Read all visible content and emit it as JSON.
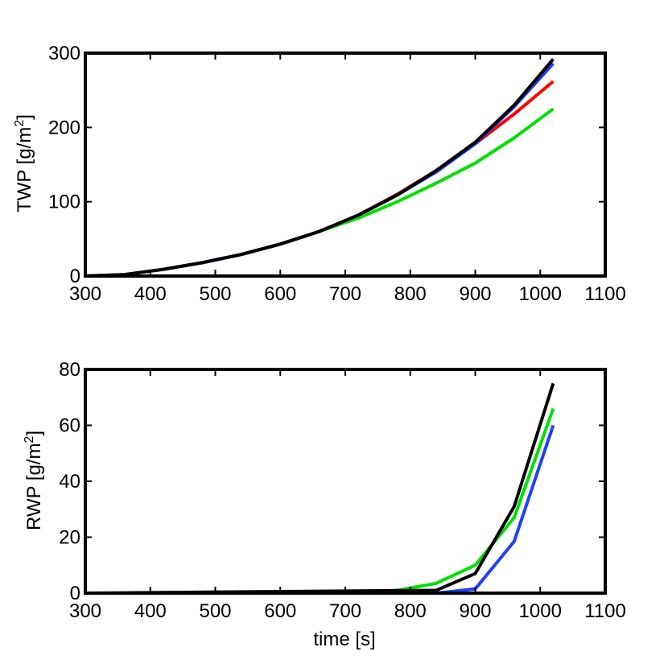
{
  "chart_data": [
    {
      "type": "line",
      "ylabel": {
        "prefix": "TWP [g/m",
        "sup": "2",
        "suffix": "]"
      },
      "xlabel": "",
      "xlim": [
        300,
        1100
      ],
      "ylim": [
        0,
        300
      ],
      "xticks": [
        "300",
        "400",
        "500",
        "600",
        "700",
        "800",
        "900",
        "1000",
        "1100"
      ],
      "yticks": [
        "0",
        "100",
        "200",
        "300"
      ],
      "series": [
        {
          "color": "#00e000",
          "x": [
            300,
            360,
            420,
            480,
            540,
            600,
            660,
            720,
            780,
            840,
            900,
            960,
            1020
          ],
          "y": [
            0,
            2,
            9,
            18,
            29,
            43,
            60,
            78,
            100,
            125,
            152,
            186,
            225
          ]
        },
        {
          "color": "#ff0000",
          "x": [
            300,
            360,
            420,
            480,
            540,
            600,
            660,
            720,
            780,
            840,
            900,
            960,
            1020
          ],
          "y": [
            0,
            2,
            9,
            18,
            29,
            43,
            60,
            82,
            110,
            142,
            178,
            218,
            262
          ]
        },
        {
          "color": "#2040ff",
          "x": [
            300,
            360,
            420,
            480,
            540,
            600,
            660,
            720,
            780,
            840,
            900,
            960,
            1020
          ],
          "y": [
            0,
            2,
            9,
            18,
            29,
            43,
            60,
            82,
            109,
            140,
            178,
            228,
            286
          ]
        },
        {
          "color": "#000000",
          "x": [
            300,
            360,
            420,
            480,
            540,
            600,
            660,
            720,
            780,
            840,
            900,
            960,
            1020
          ],
          "y": [
            0,
            2,
            9,
            18,
            29,
            43,
            60,
            82,
            109,
            142,
            180,
            230,
            292
          ]
        }
      ]
    },
    {
      "type": "line",
      "ylabel": {
        "prefix": "RWP [g/m",
        "sup": "2",
        "suffix": "]"
      },
      "xlabel": "time [s]",
      "xlim": [
        300,
        1100
      ],
      "ylim": [
        0,
        80
      ],
      "xticks": [
        "300",
        "400",
        "500",
        "600",
        "700",
        "800",
        "900",
        "1000",
        "1100"
      ],
      "yticks": [
        "0",
        "20",
        "40",
        "60",
        "80"
      ],
      "series": [
        {
          "color": "#00e000",
          "x": [
            300,
            700,
            780,
            840,
            900,
            960,
            1020
          ],
          "y": [
            0,
            0,
            1,
            3.5,
            10,
            27,
            66
          ]
        },
        {
          "color": "#2040ff",
          "x": [
            300,
            840,
            900,
            960,
            1020
          ],
          "y": [
            0,
            0,
            1.5,
            18.5,
            60
          ]
        },
        {
          "color": "#000000",
          "x": [
            300,
            840,
            900,
            960,
            1020
          ],
          "y": [
            0,
            1,
            7,
            31,
            75
          ]
        },
        {
          "color": "#ff0000",
          "x": [
            300,
            840,
            1020
          ],
          "y": [
            0,
            0,
            0
          ]
        }
      ]
    }
  ]
}
